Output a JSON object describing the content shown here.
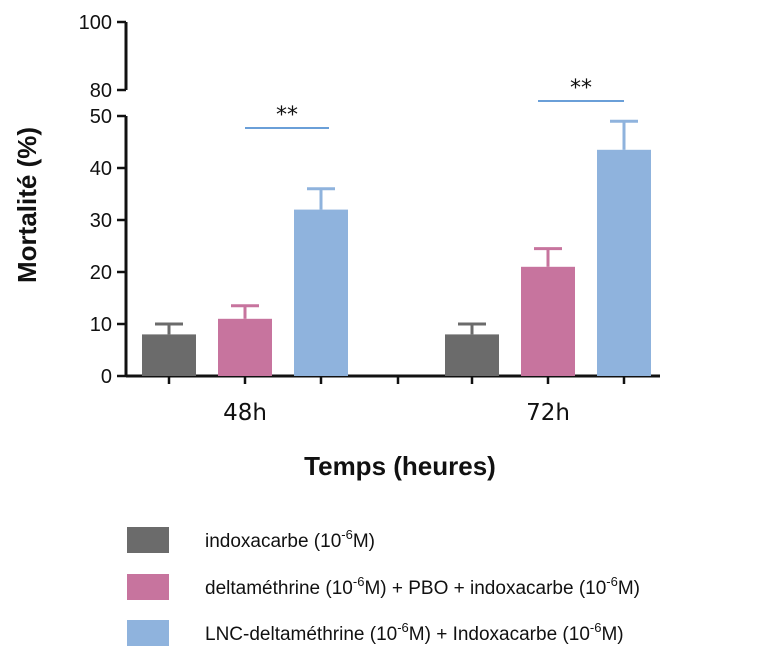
{
  "chart_data": {
    "type": "bar",
    "categories": [
      "48h",
      "72h"
    ],
    "xlabel": "Temps (heures)",
    "ylabel": "Mortalité (%)",
    "ylim": [
      0,
      100
    ],
    "y_axis_break": [
      50,
      80
    ],
    "yticks_lower": [
      0,
      10,
      20,
      30,
      40,
      50
    ],
    "yticks_upper": [
      80,
      100
    ],
    "series": [
      {
        "name": "indoxacarbe (10-6M)",
        "legend_parts": [
          "indoxacarbe  (10",
          "-6",
          "M)"
        ],
        "color": "#6b6b6b",
        "values": [
          8,
          8
        ],
        "errors": [
          2,
          2
        ]
      },
      {
        "name": "deltaméthrine (10-6M) + PBO + indoxacarbe (10-6M)",
        "legend_parts": [
          "deltaméthrine  (10",
          "-6",
          "M) + PBO + indoxacarbe  (10",
          "-6",
          "M)"
        ],
        "color": "#c7749e",
        "values": [
          11,
          21
        ],
        "errors": [
          2.5,
          3.5
        ]
      },
      {
        "name": "LNC-deltaméthrine (10-6M) + Indoxacarbe (10-6M)",
        "legend_parts": [
          "LNC-deltaméthrine  (10",
          "-6",
          "M) + Indoxacarbe  (10",
          "-6",
          "M)"
        ],
        "color": "#8fb3dd",
        "values": [
          32,
          43.5
        ],
        "errors": [
          4,
          5.5
        ]
      }
    ],
    "significance": [
      {
        "category": "48h",
        "label": "**",
        "color": "#6a9fd8"
      },
      {
        "category": "72h",
        "label": "**",
        "color": "#6a9fd8"
      }
    ],
    "legend_position": "bottom",
    "grid": false
  }
}
